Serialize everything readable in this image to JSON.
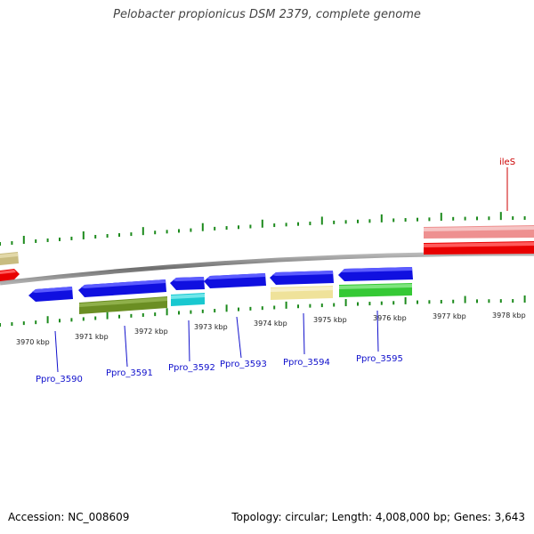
{
  "title": "Pelobacter propionicus DSM 2379, complete genome",
  "footer": {
    "accession": "Accession: NC_008609",
    "summary": "Topology: circular; Length: 4,008,000 bp; Genes: 3,643"
  },
  "colors": {
    "backbone": "#888888",
    "tick": "#1c8a1c",
    "forward_gene": "#1010e0",
    "olive_gene": "#6b8e23",
    "cyan_gene": "#19c8d0",
    "khaki_gene": "#efe29a",
    "green_gene": "#35c935",
    "red_gene": "#e80000",
    "pink_gene": "#ee9090",
    "tan_gene": "#c8bc80",
    "locus_label": "#1010cc",
    "named_label": "#cc0000"
  },
  "scale": {
    "unit": "kbp",
    "labels": [
      "3970 kbp",
      "3971 kbp",
      "3972 kbp",
      "3973 kbp",
      "3974 kbp",
      "3975 kbp",
      "3976 kbp",
      "3977 kbp",
      "3978 kbp"
    ]
  },
  "genes": {
    "locus_labels": [
      "Ppro_3590",
      "Ppro_3591",
      "Ppro_3592",
      "Ppro_3593",
      "Ppro_3594",
      "Ppro_3595"
    ],
    "named_labels": [
      "ileS"
    ]
  }
}
